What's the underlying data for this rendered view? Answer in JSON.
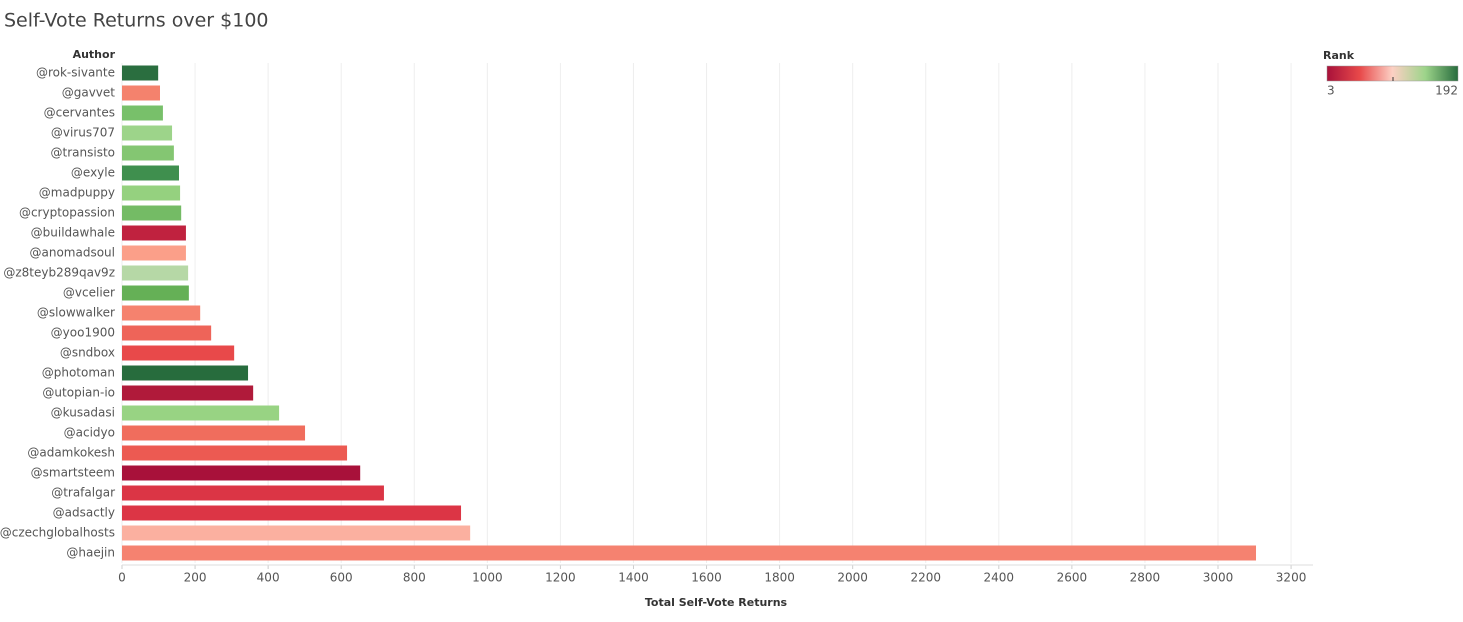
{
  "chart_data": {
    "type": "hbar",
    "title": "Self-Vote Returns over $100",
    "y_label": "Author",
    "x_label": "Total Self-Vote Returns",
    "categories": [
      "@rok-sivante",
      "@gavvet",
      "@cervantes",
      "@virus707",
      "@transisto",
      "@exyle",
      "@madpuppy",
      "@cryptopassion",
      "@buildawhale",
      "@anomadsoul",
      "@z8teyb289qav9z",
      "@vcelier",
      "@slowwalker",
      "@yoo1900",
      "@sndbox",
      "@photoman",
      "@utopian-io",
      "@kusadasi",
      "@acidyo",
      "@adamkokesh",
      "@smartsteem",
      "@trafalgar",
      "@adsactly",
      "@czechglobalhosts",
      "@haejin"
    ],
    "values": [
      99,
      104,
      112,
      137,
      142,
      156,
      159,
      162,
      175,
      175,
      181,
      183,
      214,
      244,
      307,
      345,
      359,
      430,
      501,
      616,
      652,
      717,
      928,
      953,
      3104
    ],
    "colors": [
      "#2a6e3f",
      "#f4826d",
      "#78c06a",
      "#9dd48a",
      "#84c672",
      "#3f8f4e",
      "#95d17f",
      "#74bb65",
      "#c0223f",
      "#fb9f89",
      "#b6d8a6",
      "#65b056",
      "#f5826e",
      "#ee6459",
      "#e8494a",
      "#276c3d",
      "#b01a3a",
      "#98d383",
      "#f06d5d",
      "#ec5a52",
      "#a8113a",
      "#db3545",
      "#dc3545",
      "#fbb0a0",
      "#f58270"
    ],
    "xlim": [
      0,
      3260
    ],
    "xticks": [
      0,
      200,
      400,
      600,
      800,
      1000,
      1200,
      1400,
      1600,
      1800,
      2000,
      2200,
      2400,
      2600,
      2800,
      3000,
      3200
    ],
    "grid": true,
    "legend": {
      "title": "Rank",
      "min": 3,
      "max": 192,
      "colors": [
        "#a8113a",
        "#e8494a",
        "#fcd0c4",
        "#9dd48a",
        "#276c3d"
      ]
    }
  }
}
